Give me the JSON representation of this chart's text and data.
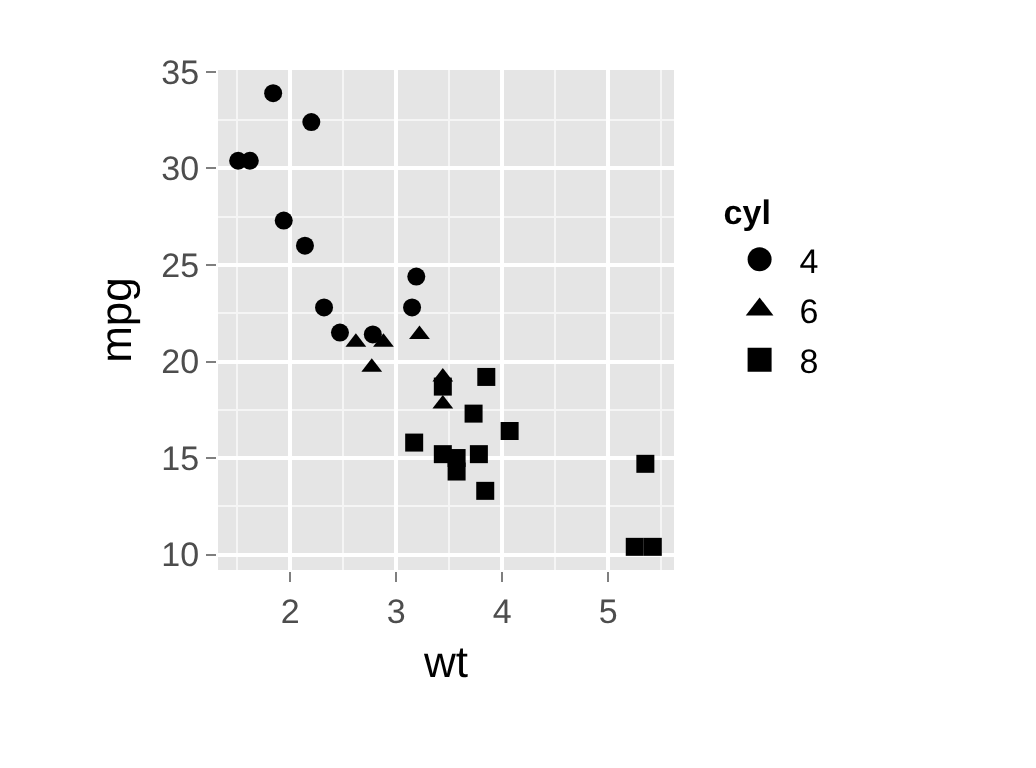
{
  "chart_data": {
    "type": "scatter",
    "xlabel": "wt",
    "ylabel": "mpg",
    "legend_title": "cyl",
    "legend": "right",
    "grid": true,
    "xlim": [
      1.32,
      5.62
    ],
    "ylim": [
      9.2,
      35.1
    ],
    "xticks": [
      2,
      3,
      4,
      5
    ],
    "yticks": [
      10,
      15,
      20,
      25,
      30,
      35
    ],
    "series": [
      {
        "name": "4",
        "color": "#000000",
        "marker": "circle",
        "x": [
          2.32,
          3.19,
          3.15,
          2.2,
          1.62,
          1.84,
          2.47,
          1.94,
          2.14,
          1.51,
          2.78
        ],
        "values": [
          22.8,
          24.4,
          22.8,
          32.4,
          30.4,
          33.9,
          21.5,
          27.3,
          26.0,
          30.4,
          21.4
        ]
      },
      {
        "name": "6",
        "color": "#000000",
        "marker": "triangle",
        "x": [
          2.62,
          2.88,
          3.22,
          3.44,
          3.44,
          2.77
        ],
        "values": [
          21.0,
          21.0,
          21.4,
          19.2,
          17.8,
          19.7
        ]
      },
      {
        "name": "8",
        "color": "#000000",
        "marker": "square",
        "x": [
          3.44,
          3.57,
          4.07,
          3.73,
          3.78,
          5.25,
          5.42,
          5.35,
          3.44,
          3.84,
          3.85,
          3.17,
          3.57
        ],
        "values": [
          18.7,
          14.3,
          16.4,
          17.3,
          15.2,
          10.4,
          10.4,
          14.7,
          15.2,
          13.3,
          19.2,
          15.8,
          15.0
        ]
      }
    ]
  }
}
